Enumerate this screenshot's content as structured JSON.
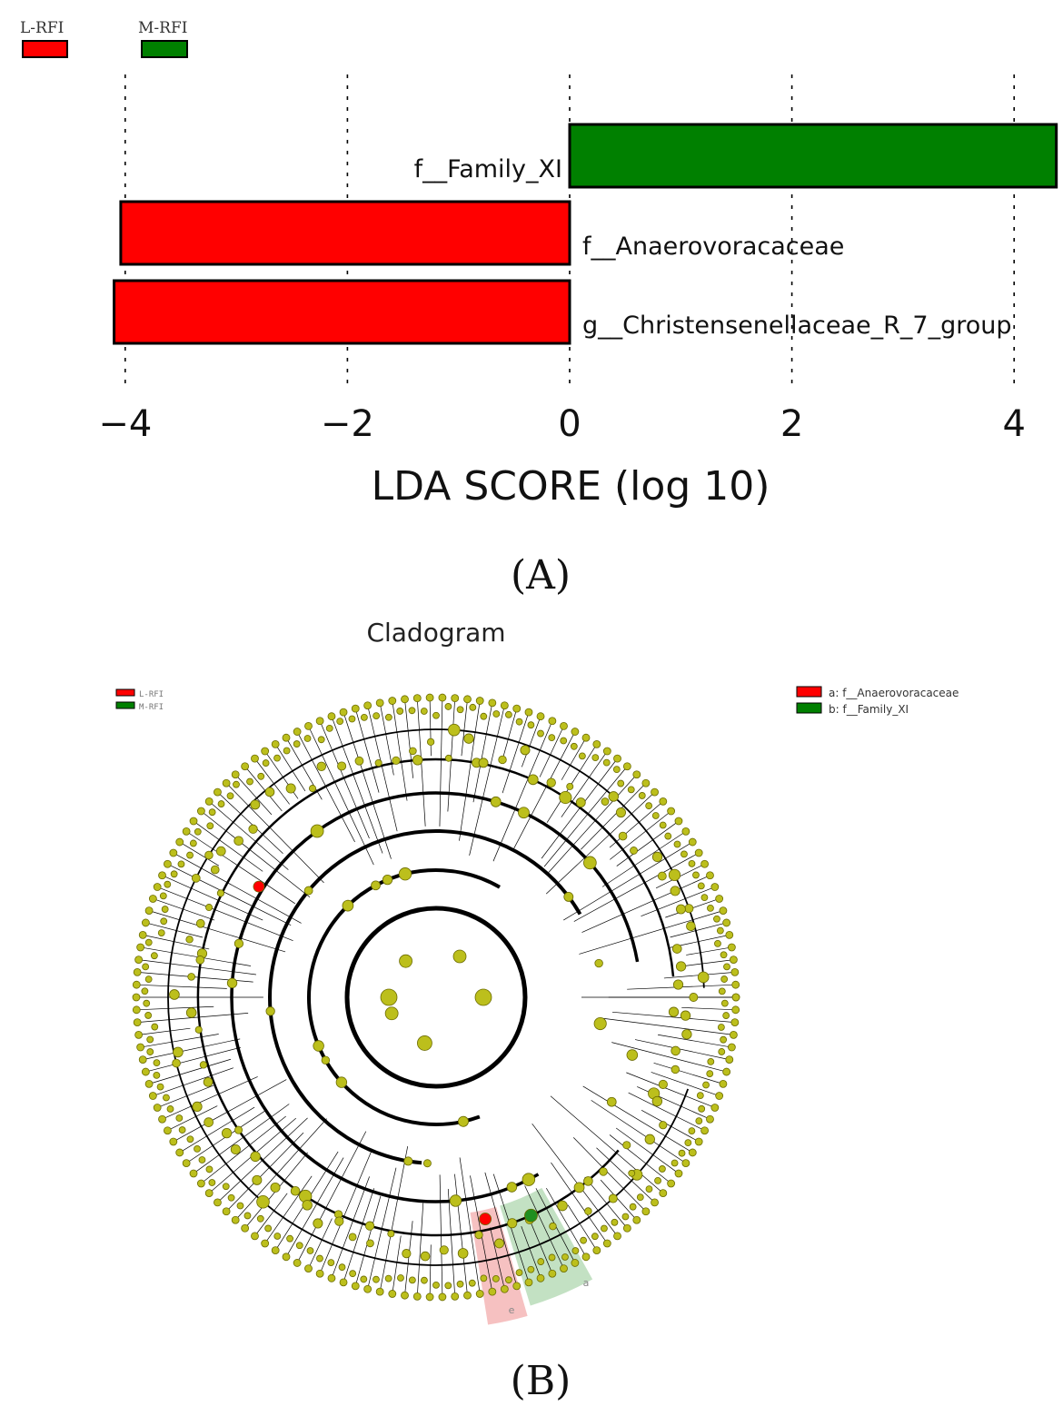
{
  "chart_data": [
    {
      "type": "bar",
      "orientation": "horizontal",
      "panel_label": "(A)",
      "legend": [
        {
          "name": "L-RFI",
          "color": "#ff0000"
        },
        {
          "name": "M-RFI",
          "color": "#008000"
        }
      ],
      "categories": [
        "f__Family_XI",
        "f__Anaerovoracaceae",
        "g__Christensenellaceae_R_7_group"
      ],
      "values": [
        4.38,
        -4.04,
        -4.1
      ],
      "groups": [
        "M-RFI",
        "L-RFI",
        "L-RFI"
      ],
      "colors": [
        "#008000",
        "#ff0000",
        "#ff0000"
      ],
      "xlabel": "LDA SCORE (log 10)",
      "xticks": [
        -4,
        -2,
        0,
        2,
        4
      ],
      "xtick_labels": [
        "−4",
        "−2",
        "0",
        "2",
        "4"
      ],
      "xlim": [
        -4.1,
        4.4
      ],
      "grid": "vertical dotted"
    },
    {
      "type": "cladogram",
      "title": "Cladogram",
      "panel_label": "(B)",
      "legend_groups": [
        {
          "name": "L-RFI",
          "color": "#ff0000"
        },
        {
          "name": "M-RFI",
          "color": "#008000"
        }
      ],
      "legend_taxa": [
        {
          "label": "a: f__Anaerovoracaceae",
          "color": "#ff0000"
        },
        {
          "label": "b: f__Family_XI",
          "color": "#008000"
        }
      ],
      "highlight_labels": [
        "e",
        "a"
      ],
      "node_color": "#bcbf1c"
    }
  ]
}
